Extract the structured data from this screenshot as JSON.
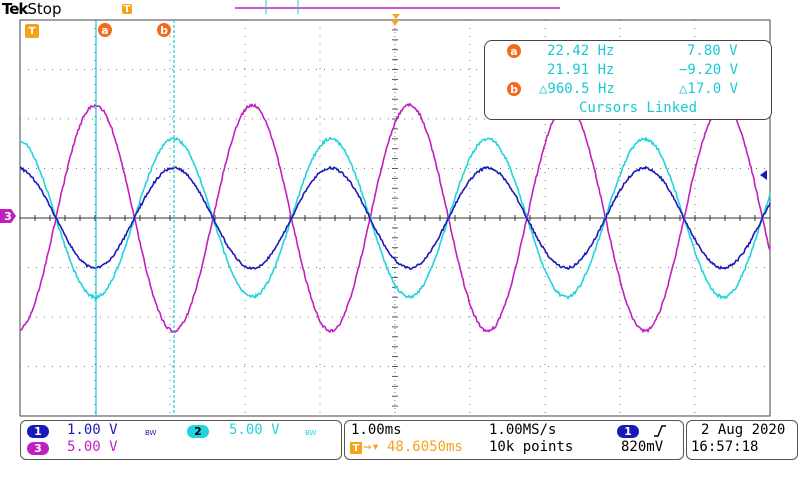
{
  "header": {
    "brand": "Tek",
    "status": "Stop"
  },
  "markers": {
    "trigger": "T",
    "cursor_a": "a",
    "cursor_b": "b",
    "ch3_level": "3"
  },
  "cursor_readout": {
    "a_freq": "22.42 Hz",
    "a_volt": "7.80 V",
    "b_freq": "21.91 Hz",
    "b_volt": "−9.20 V",
    "delta_freq": "△960.5 Hz",
    "delta_volt": "△17.0 V",
    "mode": "Cursors Linked"
  },
  "channels": [
    {
      "id": "1",
      "scale": "1.00 V",
      "bw": "BW",
      "color": "#1a1ab8"
    },
    {
      "id": "2",
      "scale": "5.00 V",
      "bw": "BW",
      "color": "#22d3dd"
    },
    {
      "id": "3",
      "scale": "5.00 V",
      "color": "#c21fc2"
    }
  ],
  "timebase": {
    "scale": "1.00ms",
    "sample_rate": "1.00MS/s",
    "trigger_pos": "48.6050ms",
    "record": "10k points"
  },
  "trigger": {
    "source": "1",
    "slope_icon": "rising-edge-icon",
    "level": "820mV"
  },
  "datetime": {
    "date": "2 Aug 2020",
    "time": "16:57:18"
  },
  "colors": {
    "ch1": "#1a1ab8",
    "ch2": "#22d3dd",
    "ch3": "#c21fc2",
    "cursor": "#19c9d6",
    "accent": "#f26b1d"
  }
}
